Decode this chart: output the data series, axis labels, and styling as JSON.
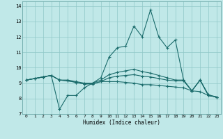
{
  "xlabel": "Humidex (Indice chaleur)",
  "xlim": [
    -0.5,
    23.5
  ],
  "ylim": [
    7,
    14.3
  ],
  "yticks": [
    7,
    8,
    9,
    10,
    11,
    12,
    13,
    14
  ],
  "xticks": [
    0,
    1,
    2,
    3,
    4,
    5,
    6,
    7,
    8,
    9,
    10,
    11,
    12,
    13,
    14,
    15,
    16,
    17,
    18,
    19,
    20,
    21,
    22,
    23
  ],
  "background_color": "#c0e8e8",
  "grid_color": "#90c8c8",
  "line_color": "#1a6b6b",
  "series": [
    [
      9.2,
      9.3,
      9.4,
      9.5,
      7.3,
      8.2,
      8.2,
      8.7,
      9.0,
      9.35,
      10.7,
      11.3,
      11.4,
      12.7,
      12.0,
      13.75,
      12.0,
      11.3,
      11.8,
      9.2,
      8.5,
      9.2,
      8.2,
      8.1
    ],
    [
      9.2,
      9.3,
      9.4,
      9.5,
      9.2,
      9.15,
      9.05,
      8.95,
      8.95,
      9.1,
      9.1,
      9.1,
      9.05,
      9.0,
      8.9,
      8.9,
      8.85,
      8.8,
      8.75,
      8.7,
      8.5,
      8.45,
      8.2,
      8.1
    ],
    [
      9.2,
      9.3,
      9.4,
      9.5,
      9.2,
      9.15,
      9.05,
      8.95,
      8.95,
      9.1,
      9.35,
      9.45,
      9.5,
      9.55,
      9.45,
      9.4,
      9.3,
      9.2,
      9.15,
      9.15,
      8.5,
      9.2,
      8.2,
      8.1
    ],
    [
      9.2,
      9.3,
      9.4,
      9.5,
      9.2,
      9.2,
      9.1,
      9.0,
      9.0,
      9.2,
      9.55,
      9.7,
      9.8,
      9.9,
      9.75,
      9.65,
      9.5,
      9.35,
      9.2,
      9.2,
      8.5,
      9.2,
      8.25,
      8.1
    ]
  ]
}
